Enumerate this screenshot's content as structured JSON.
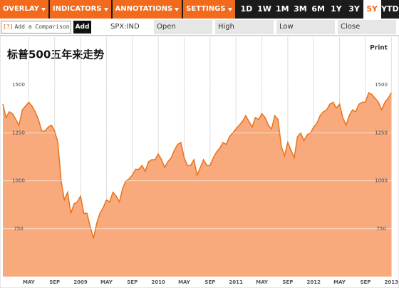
{
  "toolbar": {
    "menus": [
      "OVERLAY",
      "INDICATORS",
      "ANNOTATIONS",
      "SETTINGS"
    ],
    "ranges": [
      "1D",
      "1W",
      "1M",
      "3M",
      "6M",
      "1Y",
      "3Y",
      "5Y",
      "YTD"
    ],
    "active_range": "5Y"
  },
  "comparison": {
    "help": "[?]",
    "placeholder": "Add a Comparison",
    "button": "Add"
  },
  "quote": {
    "ticker": "SPX:IND",
    "fields": [
      "Open",
      "High",
      "Low",
      "Close"
    ]
  },
  "print": "Print",
  "chart_data": {
    "type": "area",
    "title": "标普500五年来走势",
    "x": [
      0,
      0.5,
      1,
      1.5,
      2,
      2.5,
      3,
      3.5,
      4,
      4.5,
      5,
      5.5,
      6,
      6.5,
      7,
      7.5,
      8,
      8.5,
      9,
      9.5,
      10,
      10.5,
      11,
      11.5,
      12,
      12.5,
      13,
      13.5,
      14,
      14.5,
      15,
      15.5,
      16,
      16.5,
      17,
      17.5,
      18,
      18.5,
      19,
      19.5,
      20,
      20.5,
      21,
      21.5,
      22,
      22.5,
      23,
      23.5,
      24,
      24.5,
      25,
      25.5,
      26,
      26.5,
      27,
      27.5,
      28,
      28.5,
      29,
      29.5,
      30,
      30.5,
      31,
      31.5,
      32,
      32.5,
      33,
      33.5,
      34,
      34.5,
      35,
      35.5,
      36,
      36.5,
      37,
      37.5,
      38,
      38.5,
      39,
      39.5,
      40,
      40.5,
      41,
      41.5,
      42,
      42.5,
      43,
      43.5,
      44,
      44.5,
      45,
      45.5,
      46,
      46.5,
      47,
      47.5,
      48,
      48.5,
      49,
      49.5,
      50,
      50.5,
      51,
      51.5,
      52,
      52.5,
      53,
      53.5,
      54,
      54.5,
      55,
      55.5,
      56,
      56.5,
      57,
      57.5,
      58,
      58.5,
      59,
      59.5,
      60
    ],
    "series": [
      {
        "name": "SPX:IND",
        "color": "#e8731a",
        "fill": "#f9aa7c",
        "values": [
          1400,
          1330,
          1360,
          1350,
          1320,
          1290,
          1370,
          1390,
          1410,
          1390,
          1360,
          1320,
          1260,
          1260,
          1280,
          1290,
          1260,
          1200,
          1000,
          900,
          940,
          830,
          880,
          890,
          920,
          830,
          830,
          760,
          700,
          780,
          830,
          860,
          900,
          890,
          940,
          920,
          890,
          960,
          1000,
          1010,
          1030,
          1060,
          1060,
          1080,
          1050,
          1100,
          1110,
          1110,
          1140,
          1110,
          1070,
          1100,
          1120,
          1160,
          1190,
          1200,
          1120,
          1080,
          1080,
          1110,
          1030,
          1070,
          1110,
          1080,
          1080,
          1120,
          1150,
          1170,
          1200,
          1190,
          1230,
          1250,
          1270,
          1290,
          1310,
          1340,
          1310,
          1280,
          1330,
          1320,
          1350,
          1330,
          1290,
          1270,
          1340,
          1320,
          1180,
          1130,
          1200,
          1160,
          1120,
          1230,
          1250,
          1210,
          1240,
          1250,
          1280,
          1300,
          1340,
          1360,
          1370,
          1400,
          1410,
          1380,
          1400,
          1330,
          1290,
          1340,
          1370,
          1360,
          1400,
          1410,
          1410,
          1460,
          1450,
          1430,
          1410,
          1370,
          1410,
          1430,
          1460
        ]
      }
    ],
    "xlim": [
      0,
      60.3
    ],
    "xticks": [
      {
        "value": 4,
        "label": "MAY"
      },
      {
        "value": 8,
        "label": "SEP"
      },
      {
        "value": 12,
        "label": "2009"
      },
      {
        "value": 16,
        "label": "MAY"
      },
      {
        "value": 20,
        "label": "SEP"
      },
      {
        "value": 24,
        "label": "2010"
      },
      {
        "value": 28,
        "label": "MAY"
      },
      {
        "value": 32,
        "label": "SEP"
      },
      {
        "value": 36,
        "label": "2011"
      },
      {
        "value": 40,
        "label": "MAY"
      },
      {
        "value": 44,
        "label": "SEP"
      },
      {
        "value": 48,
        "label": "2012"
      },
      {
        "value": 52,
        "label": "MAY"
      },
      {
        "value": 56,
        "label": "SEP"
      },
      {
        "value": 60,
        "label": "2013"
      }
    ],
    "ylim": [
      500,
      1750
    ],
    "yticks": [
      750,
      1000,
      1250,
      1500
    ],
    "grid": true
  }
}
